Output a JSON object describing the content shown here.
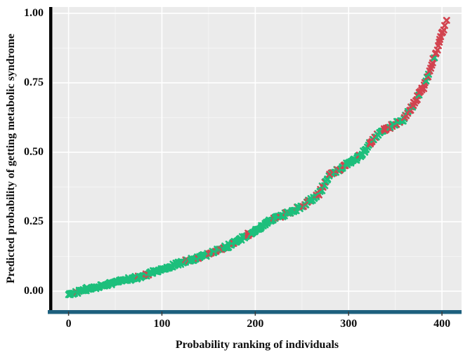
{
  "chart_data": {
    "type": "scatter",
    "title": "",
    "xlabel": "Probability ranking of individuals",
    "ylabel": "Predicted probability of getting metabolic syndrome",
    "x_ticks": [
      0,
      100,
      200,
      300,
      400
    ],
    "x_tick_labels": [
      "0",
      "100",
      "200",
      "300",
      "400"
    ],
    "y_ticks": [
      0,
      0.25,
      0.5,
      0.75,
      1.0
    ],
    "y_tick_labels": [
      "0.00",
      "0.25",
      "0.50",
      "0.75",
      "1.00"
    ],
    "x_minor_ticks": [
      50,
      150,
      250,
      350
    ],
    "y_minor_ticks": [
      0.125,
      0.375,
      0.625,
      0.875
    ],
    "xlim": [
      -17,
      421
    ],
    "ylim": [
      -0.068,
      1.023
    ],
    "grid": true,
    "legend": "none",
    "marker": "x",
    "n_band_points": 404,
    "series": [
      {
        "name": "green-group",
        "color": "#1dbf7c"
      },
      {
        "name": "red-group",
        "color": "#d2434f"
      }
    ],
    "curve_anchors": [
      [
        0,
        -0.013
      ],
      [
        8,
        -0.006
      ],
      [
        20,
        0.008
      ],
      [
        30,
        0.016
      ],
      [
        45,
        0.028
      ],
      [
        58,
        0.04
      ],
      [
        70,
        0.047
      ],
      [
        80,
        0.054
      ],
      [
        90,
        0.068
      ],
      [
        100,
        0.08
      ],
      [
        115,
        0.096
      ],
      [
        130,
        0.112
      ],
      [
        142,
        0.124
      ],
      [
        152,
        0.136
      ],
      [
        162,
        0.15
      ],
      [
        172,
        0.165
      ],
      [
        183,
        0.186
      ],
      [
        193,
        0.205
      ],
      [
        202,
        0.22
      ],
      [
        208,
        0.235
      ],
      [
        213,
        0.25
      ],
      [
        222,
        0.262
      ],
      [
        232,
        0.278
      ],
      [
        242,
        0.292
      ],
      [
        252,
        0.31
      ],
      [
        262,
        0.335
      ],
      [
        268,
        0.35
      ],
      [
        274,
        0.385
      ],
      [
        280,
        0.42
      ],
      [
        288,
        0.436
      ],
      [
        296,
        0.452
      ],
      [
        304,
        0.468
      ],
      [
        310,
        0.48
      ],
      [
        316,
        0.5
      ],
      [
        322,
        0.53
      ],
      [
        328,
        0.555
      ],
      [
        334,
        0.572
      ],
      [
        340,
        0.585
      ],
      [
        347,
        0.597
      ],
      [
        353,
        0.608
      ],
      [
        358,
        0.618
      ],
      [
        363,
        0.638
      ],
      [
        368,
        0.665
      ],
      [
        373,
        0.695
      ],
      [
        377,
        0.715
      ],
      [
        381,
        0.74
      ],
      [
        384,
        0.765
      ],
      [
        387,
        0.79
      ],
      [
        390,
        0.825
      ],
      [
        392,
        0.845
      ],
      [
        394,
        0.862
      ],
      [
        396,
        0.882
      ],
      [
        398,
        0.905
      ],
      [
        400,
        0.928
      ],
      [
        403,
        0.952
      ]
    ],
    "red_fraction_segments": [
      [
        0,
        60,
        0.03
      ],
      [
        60,
        100,
        0.06
      ],
      [
        100,
        160,
        0.09
      ],
      [
        160,
        230,
        0.13
      ],
      [
        230,
        268,
        0.18
      ],
      [
        268,
        292,
        0.4
      ],
      [
        292,
        316,
        0.3
      ],
      [
        316,
        336,
        0.45
      ],
      [
        336,
        352,
        0.55
      ],
      [
        352,
        366,
        0.4
      ],
      [
        366,
        392,
        0.72
      ],
      [
        392,
        404,
        0.8
      ]
    ],
    "outlier_points": [
      {
        "x": 405,
        "y": 0.975,
        "series": "red-group"
      }
    ]
  },
  "style": {
    "panel_bg": "#ebebeb",
    "grid_major": "#ffffff",
    "grid_minor": "#f5f5f5",
    "axis_line": "#000000",
    "baseline": "#1d607e",
    "tick_mark": "#3a3a3a",
    "text_color": "#0d0d0d"
  }
}
